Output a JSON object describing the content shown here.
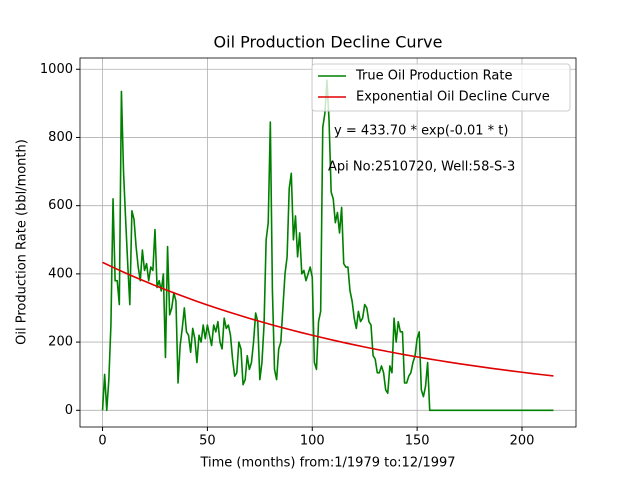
{
  "chart_data": {
    "type": "line",
    "title": "Oil Production Decline Curve",
    "xlabel": "Time (months) from:1/1979 to:12/1997",
    "ylabel": "Oil Production Rate (bbl/month)",
    "xlim": [
      -10.75,
      225.75
    ],
    "ylim": [
      -49,
      1033
    ],
    "xticks": [
      0,
      50,
      100,
      150,
      200
    ],
    "yticks": [
      0,
      200,
      400,
      600,
      800,
      1000
    ],
    "grid": true,
    "legend": "upper right",
    "annotations": [
      {
        "text": "y = 433.70 * exp(-0.01 * t)"
      },
      {
        "text": "Api No:2510720, Well:58-S-3"
      }
    ],
    "series": [
      {
        "name": "True Oil Production Rate",
        "color": "#008000",
        "x": [
          0,
          1,
          2,
          3,
          4,
          5,
          6,
          7,
          8,
          9,
          10,
          11,
          12,
          13,
          14,
          15,
          16,
          17,
          18,
          19,
          20,
          21,
          22,
          23,
          24,
          25,
          26,
          27,
          28,
          29,
          30,
          31,
          32,
          33,
          34,
          35,
          36,
          37,
          38,
          39,
          40,
          41,
          42,
          43,
          44,
          45,
          46,
          47,
          48,
          49,
          50,
          51,
          52,
          53,
          54,
          55,
          56,
          57,
          58,
          59,
          60,
          61,
          62,
          63,
          64,
          65,
          66,
          67,
          68,
          69,
          70,
          71,
          72,
          73,
          74,
          75,
          76,
          77,
          78,
          79,
          80,
          81,
          82,
          83,
          84,
          85,
          86,
          87,
          88,
          89,
          90,
          91,
          92,
          93,
          94,
          95,
          96,
          97,
          98,
          99,
          100,
          101,
          102,
          103,
          104,
          105,
          106,
          107,
          108,
          109,
          110,
          111,
          112,
          113,
          114,
          115,
          116,
          117,
          118,
          119,
          120,
          121,
          122,
          123,
          124,
          125,
          126,
          127,
          128,
          129,
          130,
          131,
          132,
          133,
          134,
          135,
          136,
          137,
          138,
          139,
          140,
          141,
          142,
          143,
          144,
          145,
          146,
          147,
          148,
          149,
          150,
          151,
          152,
          153,
          154,
          155,
          156,
          157,
          158,
          159,
          160,
          161,
          162,
          163,
          164,
          165,
          166,
          167,
          168,
          169,
          170,
          171,
          172,
          173,
          174,
          175,
          176,
          177,
          178,
          179,
          180,
          181,
          182,
          183,
          184,
          185,
          186,
          187,
          188,
          189,
          190,
          191,
          192,
          193,
          194,
          195,
          196,
          197,
          198,
          199,
          200,
          201,
          202,
          203,
          204,
          205,
          206,
          207,
          208,
          209,
          210,
          211,
          212,
          213,
          214,
          215
        ],
        "values": [
          0,
          105,
          0,
          90,
          250,
          620,
          380,
          380,
          310,
          935,
          700,
          560,
          430,
          310,
          585,
          560,
          480,
          420,
          380,
          470,
          410,
          430,
          380,
          420,
          410,
          530,
          360,
          380,
          350,
          400,
          155,
          480,
          280,
          300,
          345,
          320,
          80,
          190,
          240,
          300,
          230,
          220,
          170,
          240,
          210,
          140,
          220,
          200,
          250,
          210,
          250,
          220,
          190,
          250,
          230,
          260,
          200,
          180,
          270,
          240,
          250,
          220,
          150,
          100,
          110,
          200,
          180,
          75,
          90,
          160,
          120,
          140,
          200,
          285,
          260,
          90,
          140,
          250,
          500,
          550,
          845,
          350,
          120,
          90,
          180,
          200,
          300,
          400,
          450,
          650,
          695,
          500,
          570,
          450,
          520,
          400,
          410,
          380,
          400,
          420,
          390,
          140,
          120,
          260,
          290,
          830,
          870,
          968,
          850,
          640,
          620,
          550,
          580,
          520,
          595,
          430,
          420,
          420,
          350,
          320,
          270,
          240,
          290,
          260,
          270,
          310,
          300,
          260,
          250,
          160,
          150,
          110,
          110,
          130,
          110,
          60,
          50,
          130,
          110,
          270,
          200,
          260,
          230,
          230,
          80,
          80,
          100,
          110,
          140,
          160,
          210,
          230,
          60,
          40,
          70,
          140,
          0,
          0,
          0,
          0,
          0,
          0,
          0,
          0,
          0,
          0,
          0,
          0,
          0,
          0,
          0,
          0,
          0,
          0,
          0,
          0,
          0,
          0,
          0,
          0,
          0,
          0,
          0,
          0,
          0,
          0,
          0,
          0,
          0,
          0,
          0,
          0,
          0,
          0,
          0,
          0,
          0,
          0,
          0,
          0,
          0,
          0,
          0,
          0,
          0,
          0,
          0,
          0,
          0,
          0,
          0,
          0,
          0,
          0,
          0,
          0
        ]
      },
      {
        "name": "Exponential Oil Decline Curve",
        "color": "#e00000",
        "x": [
          0,
          5,
          10,
          15,
          20,
          25,
          30,
          35,
          40,
          45,
          50,
          55,
          60,
          65,
          70,
          75,
          80,
          85,
          90,
          95,
          100,
          105,
          110,
          115,
          120,
          125,
          130,
          135,
          140,
          145,
          150,
          155,
          160,
          165,
          170,
          175,
          180,
          185,
          190,
          195,
          200,
          205,
          210,
          215
        ],
        "values": [
          433.7,
          419.22,
          405.23,
          391.7,
          378.63,
          365.99,
          353.77,
          341.96,
          330.55,
          319.52,
          308.86,
          298.55,
          288.58,
          278.95,
          269.64,
          260.64,
          251.94,
          243.53,
          235.4,
          227.55,
          219.95,
          212.61,
          205.51,
          198.65,
          192.02,
          185.61,
          179.42,
          173.43,
          167.64,
          162.04,
          156.63,
          151.41,
          146.35,
          141.47,
          136.75,
          132.18,
          127.77,
          123.51,
          119.39,
          115.4,
          111.55,
          107.83,
          104.23,
          100.75
        ]
      }
    ]
  }
}
